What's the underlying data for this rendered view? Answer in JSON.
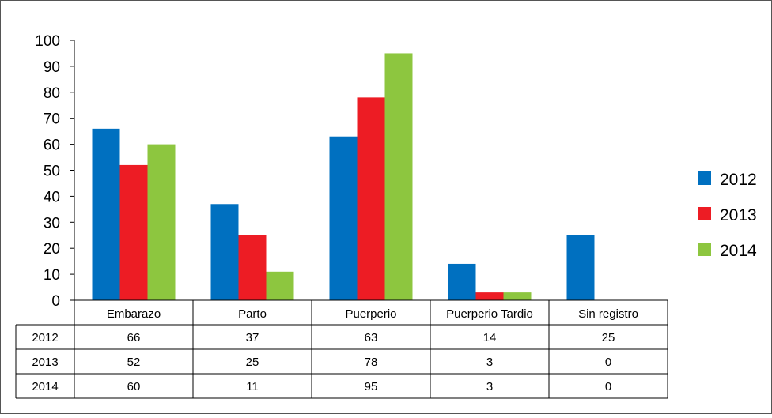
{
  "chart_data": {
    "type": "bar",
    "categories": [
      "Embarazo",
      "Parto",
      "Puerperio",
      "Puerperio Tardio",
      "Sin registro"
    ],
    "series": [
      {
        "name": "2012",
        "values": [
          66,
          37,
          63,
          14,
          25
        ],
        "color": "#0070c0"
      },
      {
        "name": "2013",
        "values": [
          52,
          25,
          78,
          3,
          0
        ],
        "color": "#ed1c24"
      },
      {
        "name": "2014",
        "values": [
          60,
          11,
          95,
          3,
          0
        ],
        "color": "#8dc63f"
      }
    ],
    "ylim": [
      0,
      100
    ],
    "yticks": [
      0,
      10,
      20,
      30,
      40,
      50,
      60,
      70,
      80,
      90,
      100
    ],
    "legend_position": "right",
    "grid": false,
    "data_table": true
  }
}
